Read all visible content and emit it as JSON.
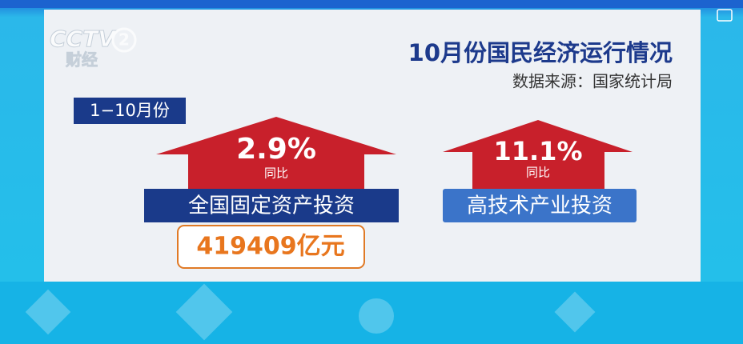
{
  "logo": {
    "channel": "CCTV",
    "number": "2",
    "name": "财经"
  },
  "header": {
    "title": "10月份国民经济运行情况",
    "source": "数据来源：国家统计局"
  },
  "period": "1−10月份",
  "items": [
    {
      "growth": "2.9%",
      "note": "同比",
      "name": "全国固定资产投资",
      "amount": "419409亿元"
    },
    {
      "growth": "11.1%",
      "note": "同比",
      "name": "高技术产业投资"
    }
  ]
}
